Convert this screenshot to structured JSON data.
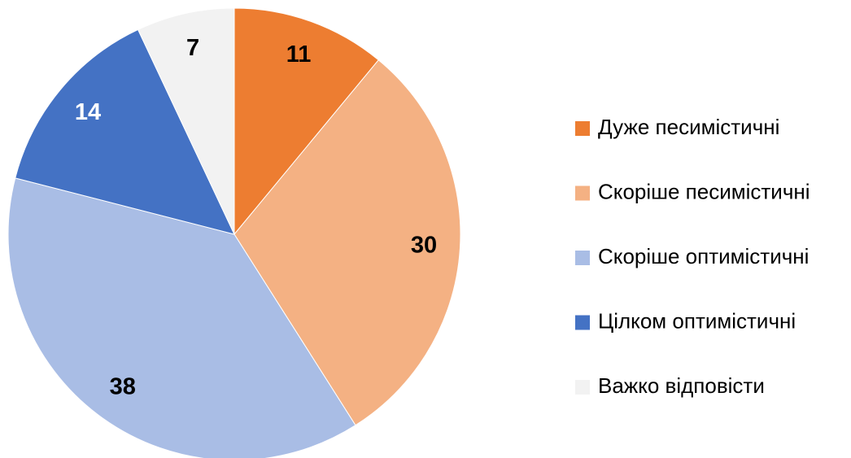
{
  "chart_data": {
    "type": "pie",
    "categories": [
      "Дуже песимістичні",
      "Скоріше песимістичні",
      "Скоріше оптимістичні",
      "Цілком оптимістичні",
      "Важко відповісти"
    ],
    "values": [
      11,
      30,
      38,
      14,
      7
    ],
    "colors": [
      "#ed7d31",
      "#f4b183",
      "#a9bde5",
      "#4472c4",
      "#f2f2f2"
    ],
    "legend": "right"
  }
}
